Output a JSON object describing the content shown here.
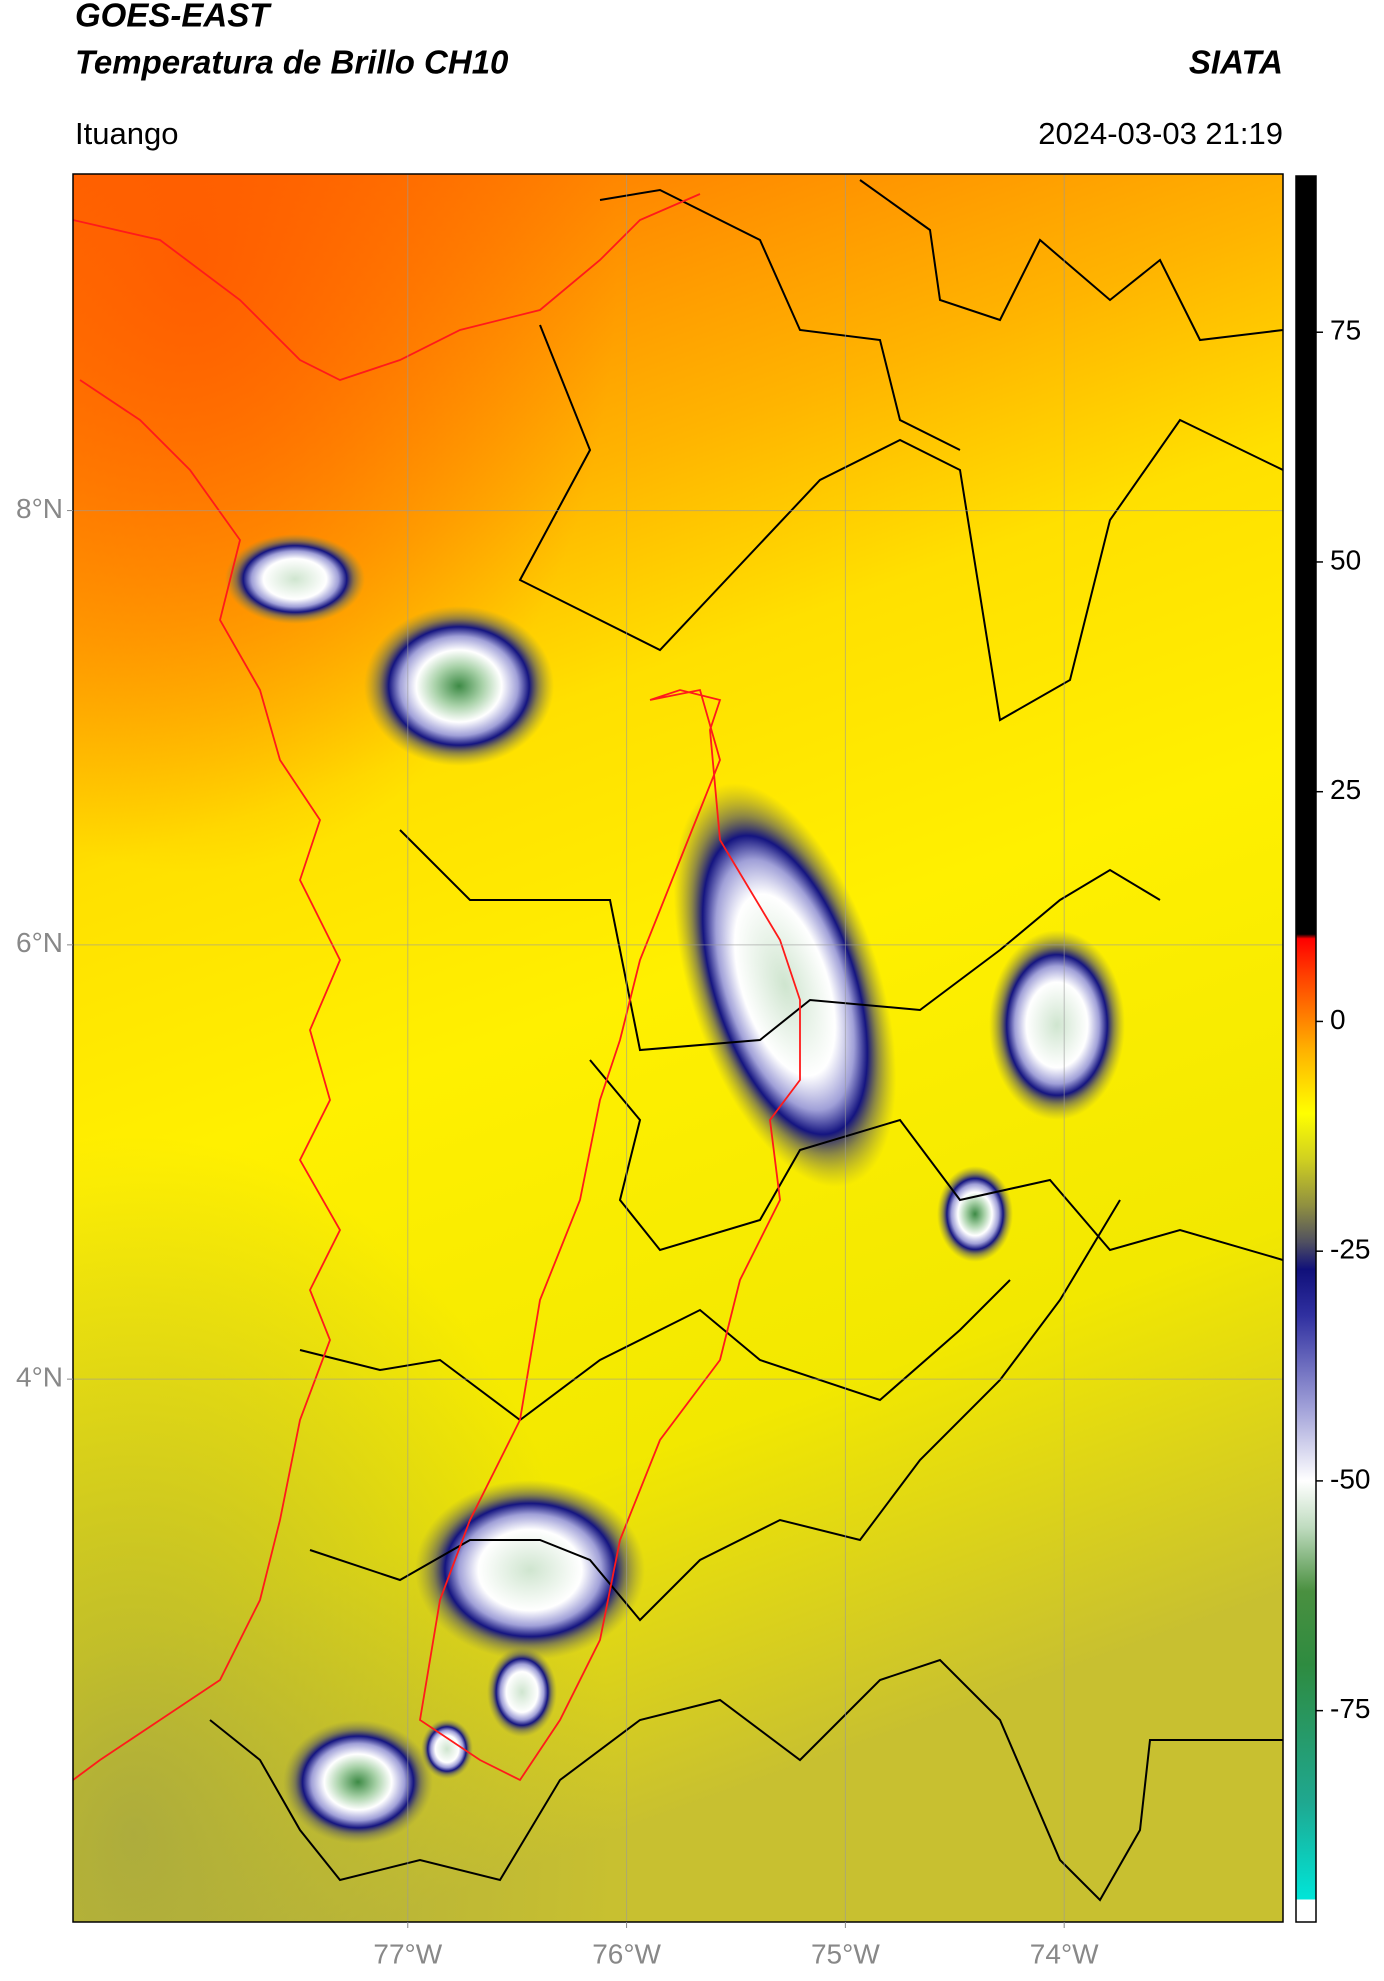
{
  "chart_data": {
    "type": "map",
    "title": "GOES-EAST",
    "subtitle": "Temperatura de Brillo CH10",
    "source": "SIATA",
    "region": "Ituango",
    "datetime": "2024-03-03 21:19",
    "xlim": [
      -78.53,
      -73.0
    ],
    "ylim": [
      1.5,
      9.55
    ],
    "xticks": [
      {
        "value": -77,
        "label": "77°W"
      },
      {
        "value": -76,
        "label": "76°W"
      },
      {
        "value": -75,
        "label": "75°W"
      },
      {
        "value": -74,
        "label": "74°W"
      }
    ],
    "yticks": [
      {
        "value": 4,
        "label": "4°N"
      },
      {
        "value": 6,
        "label": "6°N"
      },
      {
        "value": 8,
        "label": "8°N"
      }
    ],
    "grid": true,
    "colorbar": {
      "lim": [
        -98,
        92
      ],
      "ticks": [
        -75,
        -50,
        -25,
        0,
        25,
        50,
        75
      ],
      "colormap": [
        {
          "value": -98,
          "color": "#ffffff"
        },
        {
          "value": -95.6,
          "color": "#ffffff"
        },
        {
          "value": -95.5,
          "color": "#00e5d8"
        },
        {
          "value": -85,
          "color": "#1fa890"
        },
        {
          "value": -70,
          "color": "#2e8b40"
        },
        {
          "value": -62,
          "color": "#4a9040"
        },
        {
          "value": -55,
          "color": "#c0dcc0"
        },
        {
          "value": -50,
          "color": "#ffffff"
        },
        {
          "value": -42,
          "color": "#a0a0d8"
        },
        {
          "value": -32,
          "color": "#3030a0"
        },
        {
          "value": -27,
          "color": "#10107a"
        },
        {
          "value": -24,
          "color": "#505060"
        },
        {
          "value": -20,
          "color": "#909040"
        },
        {
          "value": -15,
          "color": "#d0d020"
        },
        {
          "value": -10,
          "color": "#ffff00"
        },
        {
          "value": -3,
          "color": "#ffb000"
        },
        {
          "value": 5,
          "color": "#ff4000"
        },
        {
          "value": 9,
          "color": "#ff0000"
        },
        {
          "value": 9.5,
          "color": "#000000"
        },
        {
          "value": 92,
          "color": "#000000"
        }
      ]
    }
  }
}
